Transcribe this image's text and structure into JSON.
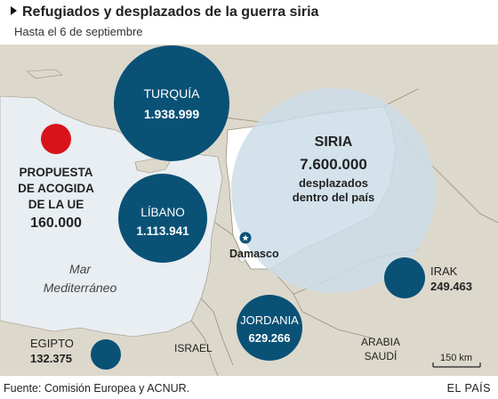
{
  "header": {
    "title": "Refugiados y desplazados de la guerra siria",
    "subtitle": "Hasta el 6 de septiembre"
  },
  "colors": {
    "land": "#ddd8cc",
    "sea": "#e8eef2",
    "bubble": "#0a5176",
    "syria_bubble": "#ccdde7",
    "eu_marker": "#d9131a",
    "border": "#9a8f7a"
  },
  "markers": {
    "eu_proposal": {
      "label_lines": [
        "PROPUESTA",
        "DE ACOGIDA",
        "DE LA UE"
      ],
      "value": "160.000"
    }
  },
  "bubbles": [
    {
      "id": "turquia",
      "name": "TURQUÍA",
      "value": "1.938.999",
      "count": 1938999
    },
    {
      "id": "libano",
      "name": "LÍBANO",
      "value": "1.113.941",
      "count": 1113941
    },
    {
      "id": "jordania",
      "name": "JORDANIA",
      "value": "629.266",
      "count": 629266
    },
    {
      "id": "irak",
      "name": "IRAK",
      "value": "249.463",
      "count": 249463
    },
    {
      "id": "egipto",
      "name": "EGIPTO",
      "value": "132.375",
      "count": 132375
    }
  ],
  "syria": {
    "name": "SIRIA",
    "value": "7.600.000",
    "desc_lines": [
      "desplazados",
      "dentro del país"
    ]
  },
  "places": {
    "capital": "Damasco",
    "sea_lines": [
      "Mar",
      "Mediterráneo"
    ],
    "israel": "ISRAEL",
    "saudi_lines": [
      "ARABIA",
      "SAUDÍ"
    ]
  },
  "scale": {
    "label": "150 km"
  },
  "footer": {
    "source": "Fuente: Comisión Europea y ACNUR.",
    "brand": "EL PAÍS"
  }
}
